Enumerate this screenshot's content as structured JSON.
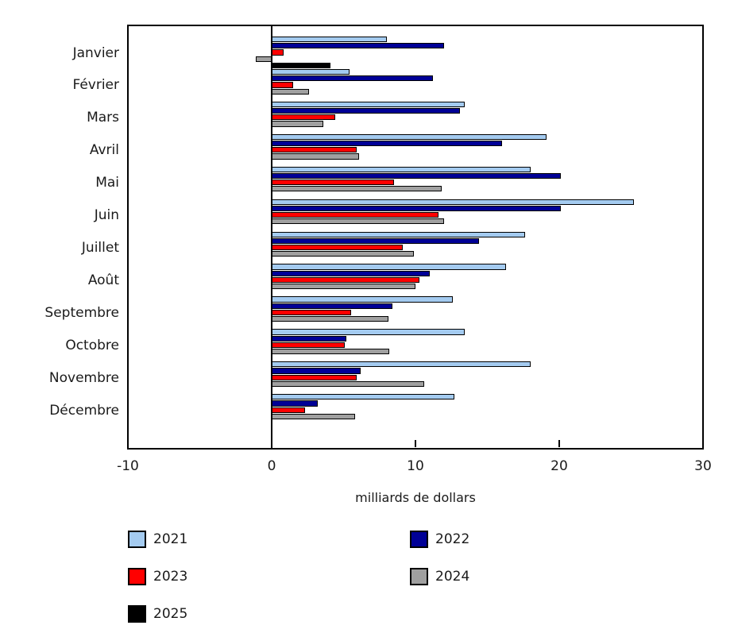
{
  "chart_data": {
    "type": "bar",
    "orientation": "horizontal",
    "title": "",
    "xlabel": "milliards de dollars",
    "ylabel": "",
    "xlim": [
      -10,
      30
    ],
    "xticks": [
      -10,
      0,
      10,
      20,
      30
    ],
    "grid": false,
    "legend_position": "bottom",
    "categories": [
      "Janvier",
      "Février",
      "Mars",
      "Avril",
      "Mai",
      "Juin",
      "Juillet",
      "Août",
      "Septembre",
      "Octobre",
      "Novembre",
      "Décembre"
    ],
    "series": [
      {
        "name": "2021",
        "color": "#A4CBF0",
        "values": [
          8.0,
          5.4,
          13.4,
          19.1,
          18.0,
          25.2,
          17.6,
          16.3,
          12.6,
          13.4,
          18.0,
          12.7
        ]
      },
      {
        "name": "2022",
        "color": "#000096",
        "values": [
          12.0,
          11.2,
          13.1,
          16.0,
          20.1,
          20.1,
          14.4,
          11.0,
          8.4,
          5.2,
          6.2,
          3.2
        ]
      },
      {
        "name": "2023",
        "color": "#FF0000",
        "values": [
          0.8,
          1.5,
          4.4,
          5.9,
          8.5,
          11.6,
          9.1,
          10.3,
          5.5,
          5.1,
          5.9,
          2.3
        ]
      },
      {
        "name": "2024",
        "color": "#A0A0A0",
        "values": [
          -1.1,
          2.6,
          3.6,
          6.1,
          11.8,
          12.0,
          9.9,
          10.0,
          8.1,
          8.2,
          10.6,
          5.8
        ]
      },
      {
        "name": "2025",
        "color": "#000000",
        "values": [
          4.1,
          null,
          null,
          null,
          null,
          null,
          null,
          null,
          null,
          null,
          null,
          null
        ]
      }
    ]
  },
  "colors": {
    "axis": "#000000",
    "text": "#1a1a1a",
    "background": "#ffffff"
  }
}
